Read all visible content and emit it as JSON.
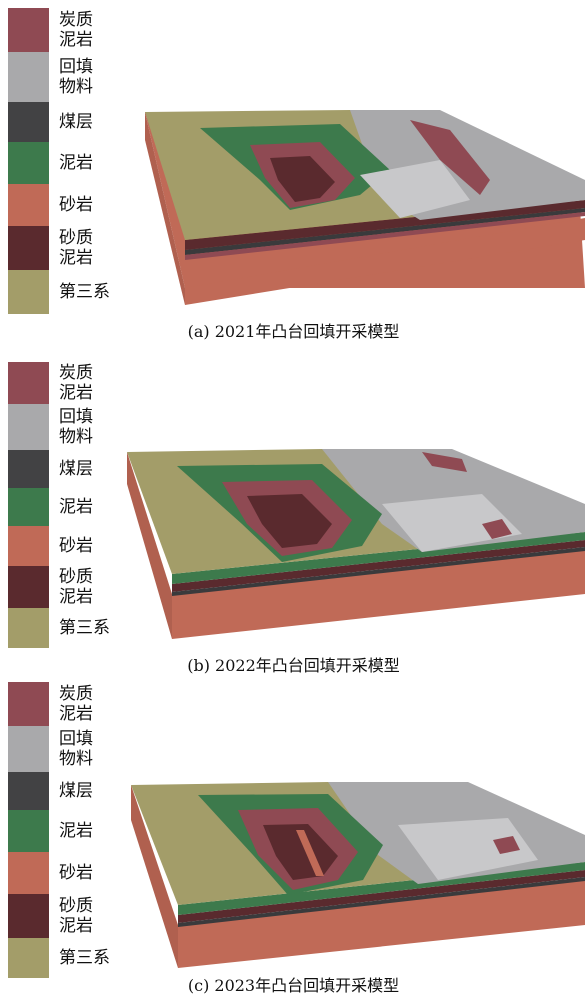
{
  "legend": [
    {
      "label": "炭质\n泥岩",
      "color": "#8f4a53"
    },
    {
      "label": "回填\n物料",
      "color": "#a9a9ab"
    },
    {
      "label": "煤层",
      "color": "#424244"
    },
    {
      "label": "泥岩",
      "color": "#3d7a4c"
    },
    {
      "label": "砂岩",
      "color": "#c06a57"
    },
    {
      "label": "砂质\n泥岩",
      "color": "#5a2a2e"
    },
    {
      "label": "第三系",
      "color": "#a39d69"
    }
  ],
  "panels": [
    {
      "caption": "(a) 2021年凸台回填开采模型"
    },
    {
      "caption": "(b) 2022年凸台回填开采模型"
    },
    {
      "caption": "(c) 2023年凸台回填开采模型"
    }
  ]
}
